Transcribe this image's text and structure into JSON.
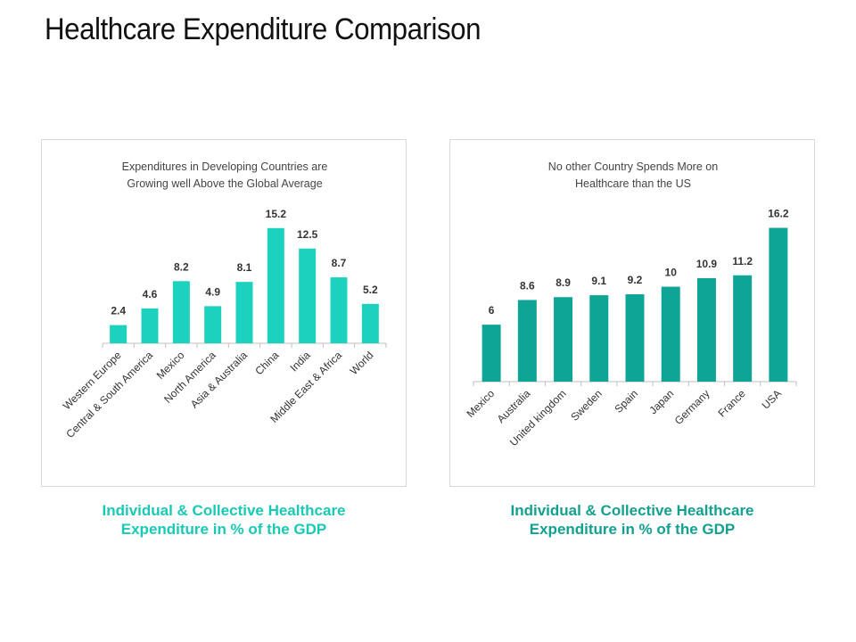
{
  "page": {
    "title": "Healthcare Expenditure Comparison"
  },
  "colors": {
    "left_bar": "#1cd2bf",
    "right_bar": "#0fa596",
    "left_caption": "#19c9b5",
    "right_caption": "#13a091",
    "axis": "#bfbfbf"
  },
  "chart_data": [
    {
      "type": "bar",
      "title": "Expenditures in Developing Countries are Growing well Above the Global Average",
      "title_lines": [
        "Expenditures in Developing Countries are",
        "Growing well Above the Global Average"
      ],
      "categories": [
        "Western Europe",
        "Central & South America",
        "Mexico",
        "North America",
        "Asia &  Australia",
        "China",
        "India",
        "Middle East & Africa",
        "World"
      ],
      "values": [
        2.4,
        4.6,
        8.2,
        4.9,
        8.1,
        15.2,
        12.5,
        8.7,
        5.2
      ],
      "value_labels": [
        "2.4",
        "4.6",
        "8.2",
        "4.9",
        "8.1",
        "15.2",
        "12.5",
        "8.7",
        "5.2"
      ],
      "xlabel": "",
      "ylabel": "",
      "ylim": [
        0,
        16
      ],
      "grid": false,
      "legend": "none",
      "caption_lines": [
        "Individual & Collective Healthcare",
        "Expenditure in % of the GDP"
      ]
    },
    {
      "type": "bar",
      "title": "No other Country Spends More on Healthcare than the US",
      "title_lines": [
        "No other Country Spends More on",
        "Healthcare than the US"
      ],
      "categories": [
        "Mexico",
        "Australia",
        "United kingdom",
        "Sweden",
        "Spain",
        "Japan",
        "Germany",
        "France",
        "USA"
      ],
      "values": [
        6,
        8.6,
        8.9,
        9.1,
        9.2,
        10,
        10.9,
        11.2,
        16.2
      ],
      "value_labels": [
        "6",
        "8.6",
        "8.9",
        "9.1",
        "9.2",
        "10",
        "10.9",
        "11.2",
        "16.2"
      ],
      "xlabel": "",
      "ylabel": "",
      "ylim": [
        0,
        17
      ],
      "grid": false,
      "legend": "none",
      "caption_lines": [
        "Individual & Collective Healthcare",
        "Expenditure in % of the GDP"
      ]
    }
  ]
}
